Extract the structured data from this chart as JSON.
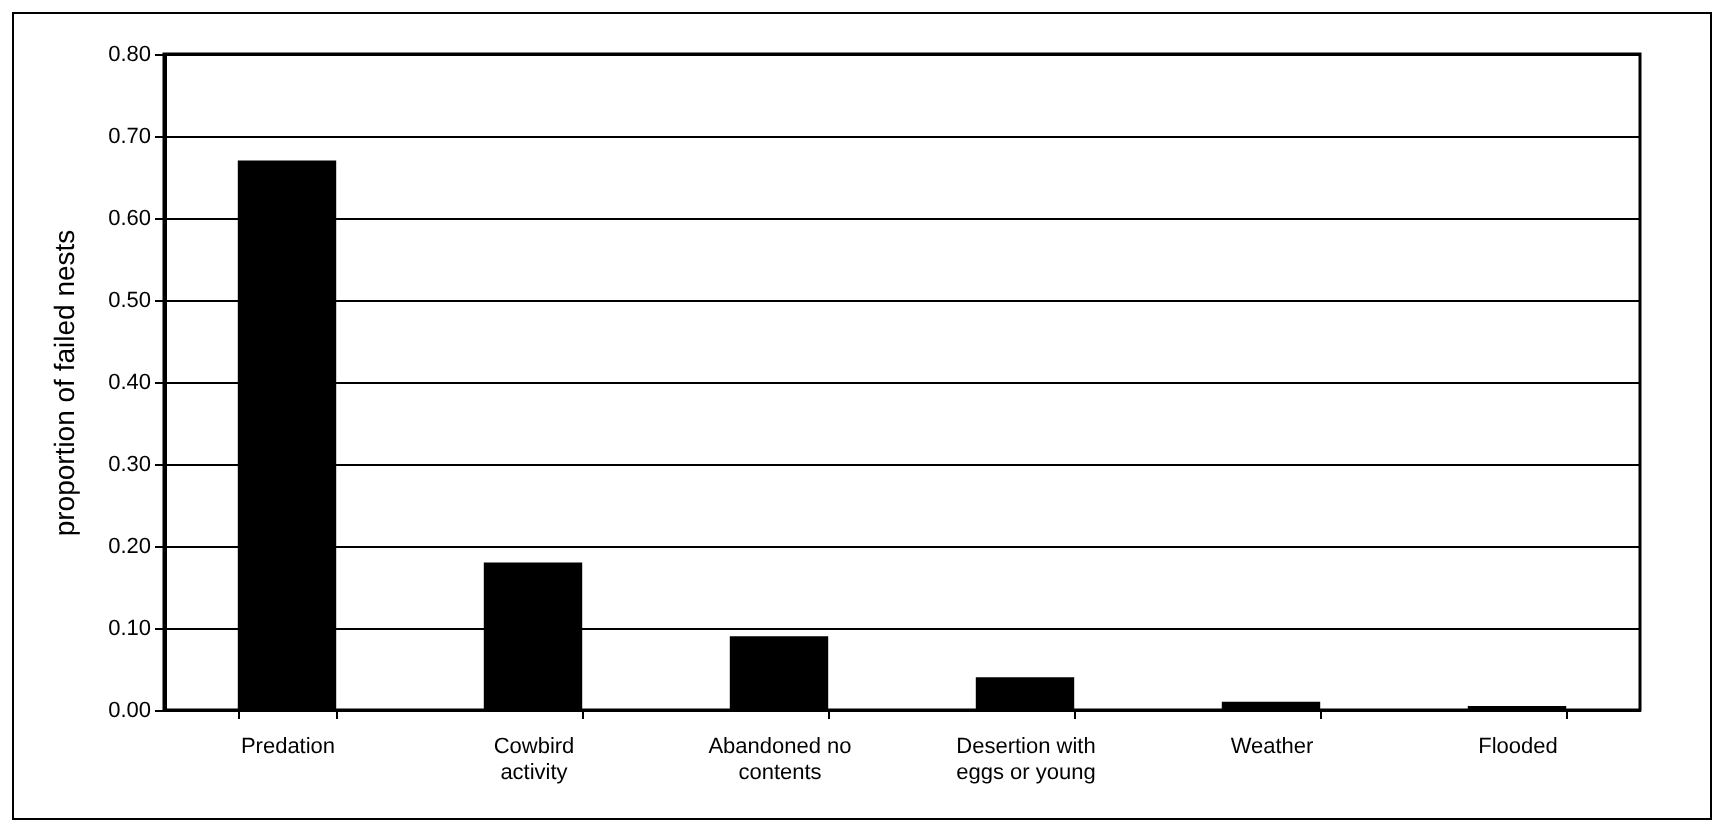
{
  "chart_data": {
    "type": "bar",
    "ylabel": "proportion of failed nests",
    "categories": [
      "Predation",
      "Cowbird activity",
      "Abandoned no contents",
      "Desertion with eggs or young",
      "Weather",
      "Flooded"
    ],
    "values": [
      0.67,
      0.18,
      0.09,
      0.04,
      0.01,
      0.005
    ],
    "color": "#000000",
    "ylim": [
      0,
      0.8
    ],
    "yticks": [
      {
        "value": 0,
        "label": "0.00"
      },
      {
        "value": 0.1,
        "label": "0.10"
      },
      {
        "value": 0.2,
        "label": "0.20"
      },
      {
        "value": 0.3,
        "label": "0.30"
      },
      {
        "value": 0.4,
        "label": "0.40"
      },
      {
        "value": 0.5,
        "label": "0.50"
      },
      {
        "value": 0.6,
        "label": "0.60"
      },
      {
        "value": 0.7,
        "label": "0.70"
      },
      {
        "value": 0.8,
        "label": "0.80"
      }
    ],
    "grid": "y"
  }
}
